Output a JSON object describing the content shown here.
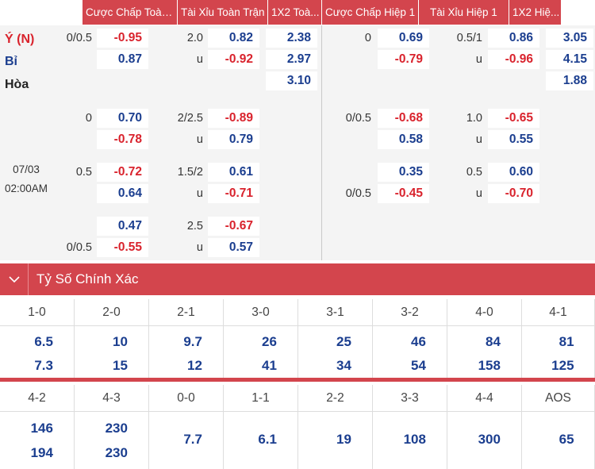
{
  "header_tabs": [
    "Cược Chấp Toàn ...",
    "Tài Xỉu Toàn Trận",
    "1X2 Toà...",
    "Cược Chấp Hiệp 1",
    "Tài Xỉu Hiệp 1",
    "1X2 Hiệ..."
  ],
  "teams": {
    "home": "Ý (N)",
    "away": "Bỉ",
    "draw": "Hòa"
  },
  "match_time": {
    "date": "07/03",
    "time": "02:00AM"
  },
  "odds": {
    "r1": {
      "ft_hcp_line": "0/0.5",
      "ft_hcp_home": "-0.95",
      "ft_hcp_away": "0.87",
      "ft_ou_line": "2.0",
      "ft_ou_over": "0.82",
      "ft_ou_u": "u",
      "ft_ou_under": "-0.92",
      "ft_1x2_home": "2.38",
      "ft_1x2_away": "2.97",
      "ft_1x2_draw": "3.10",
      "h1_hcp_line": "0",
      "h1_hcp_home": "0.69",
      "h1_hcp_away": "-0.79",
      "h1_ou_line": "0.5/1",
      "h1_ou_over": "0.86",
      "h1_ou_u": "u",
      "h1_ou_under": "-0.96",
      "h1_1x2_home": "3.05",
      "h1_1x2_away": "4.15",
      "h1_1x2_draw": "1.88"
    },
    "r2": {
      "ft_hcp_line": "0",
      "ft_hcp_home": "0.70",
      "ft_hcp_away": "-0.78",
      "ft_ou_line": "2/2.5",
      "ft_ou_over": "-0.89",
      "ft_ou_u": "u",
      "ft_ou_under": "0.79",
      "h1_hcp_line": "0/0.5",
      "h1_hcp_home": "-0.68",
      "h1_hcp_away": "0.58",
      "h1_ou_line": "1.0",
      "h1_ou_over": "-0.65",
      "h1_ou_u": "u",
      "h1_ou_under": "0.55"
    },
    "r3": {
      "ft_hcp_line": "0.5",
      "ft_hcp_home": "-0.72",
      "ft_hcp_away": "0.64",
      "ft_ou_line": "1.5/2",
      "ft_ou_over": "0.61",
      "ft_ou_u": "u",
      "ft_ou_under": "-0.71",
      "h1_hcp_home": "0.35",
      "h1_hcp_line2": "0/0.5",
      "h1_hcp_away": "-0.45",
      "h1_ou_line": "0.5",
      "h1_ou_over": "0.60",
      "h1_ou_u": "u",
      "h1_ou_under": "-0.70"
    },
    "r4": {
      "ft_hcp_home": "0.47",
      "ft_hcp_line2": "0/0.5",
      "ft_hcp_away": "-0.55",
      "ft_ou_line": "2.5",
      "ft_ou_over": "-0.67",
      "ft_ou_u": "u",
      "ft_ou_under": "0.57"
    }
  },
  "exact_score": {
    "title": "Tỷ Số Chính Xác",
    "row1": [
      {
        "score": "1-0",
        "a": "6.5",
        "b": "7.3"
      },
      {
        "score": "2-0",
        "a": "10",
        "b": "15"
      },
      {
        "score": "2-1",
        "a": "9.7",
        "b": "12"
      },
      {
        "score": "3-0",
        "a": "26",
        "b": "41"
      },
      {
        "score": "3-1",
        "a": "25",
        "b": "34"
      },
      {
        "score": "3-2",
        "a": "46",
        "b": "54"
      },
      {
        "score": "4-0",
        "a": "84",
        "b": "158"
      },
      {
        "score": "4-1",
        "a": "81",
        "b": "125"
      }
    ],
    "row2": [
      {
        "score": "4-2",
        "a": "146",
        "b": "194"
      },
      {
        "score": "4-3",
        "a": "230",
        "b": "230"
      },
      {
        "score": "0-0",
        "a": "7.7"
      },
      {
        "score": "1-1",
        "a": "6.1"
      },
      {
        "score": "2-2",
        "a": "19"
      },
      {
        "score": "3-3",
        "a": "108"
      },
      {
        "score": "4-4",
        "a": "300"
      },
      {
        "score": "AOS",
        "a": "65"
      }
    ]
  },
  "colors": {
    "accent": "#d3454d",
    "positive": "#1b3e8f",
    "negative": "#d9232d"
  },
  "icons": {
    "collapse": "chevron-down-icon"
  }
}
